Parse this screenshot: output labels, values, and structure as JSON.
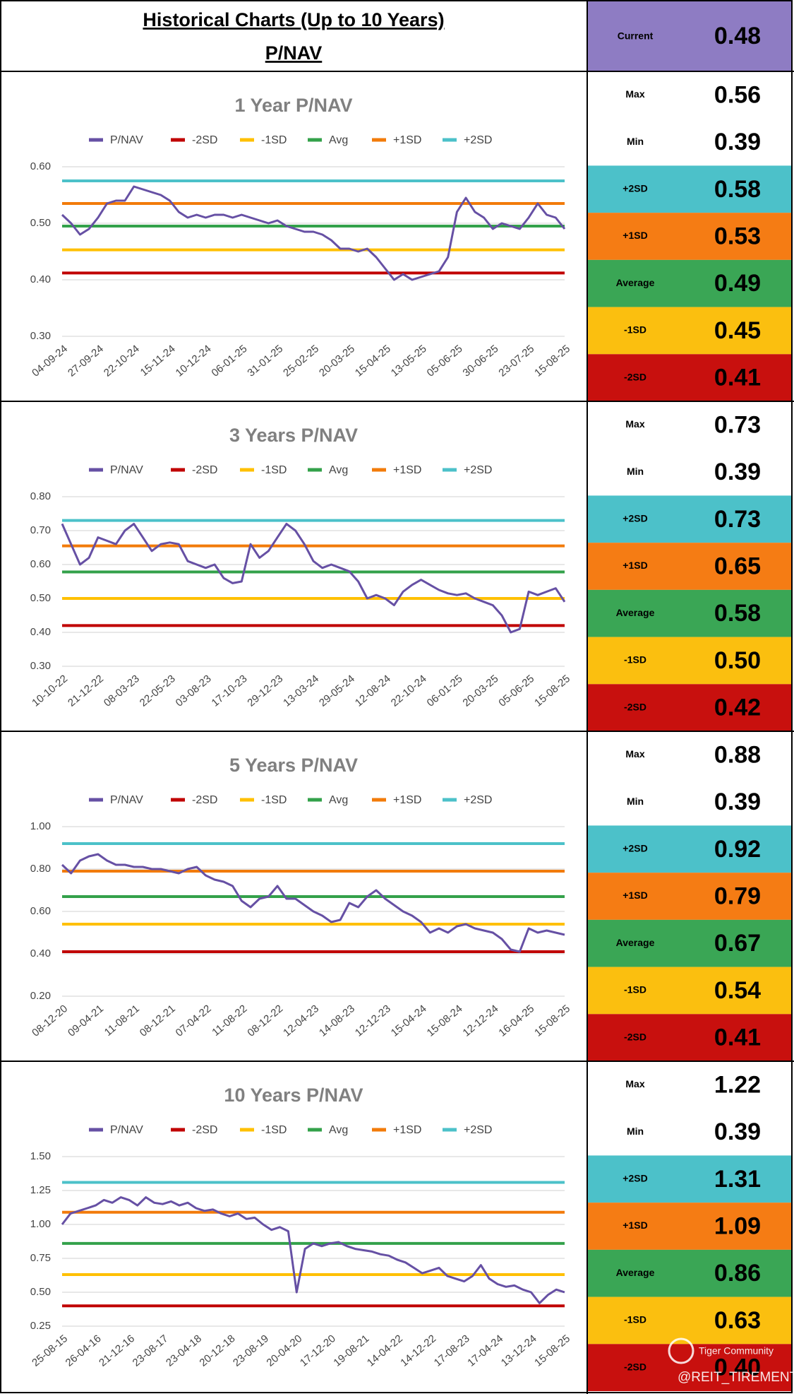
{
  "header": {
    "title": "Historical Charts (Up to 10 Years)",
    "subtitle": "P/NAV",
    "current_label": "Current",
    "current_value": "0.48",
    "current_color": "#8e7cc3"
  },
  "chart_data": [
    {
      "type": "line",
      "title": "1 Year P/NAV",
      "categories": [
        "04-09-24",
        null,
        null,
        null,
        "27-09-24",
        null,
        null,
        null,
        "22-10-24",
        null,
        null,
        null,
        "15-11-24",
        null,
        null,
        null,
        "10-12-24",
        null,
        null,
        null,
        "06-01-25",
        null,
        null,
        null,
        "31-01-25",
        null,
        null,
        null,
        "25-02-25",
        null,
        null,
        null,
        "20-03-25",
        null,
        null,
        null,
        "15-04-25",
        null,
        null,
        null,
        "13-05-25",
        null,
        null,
        null,
        "05-06-25",
        null,
        null,
        null,
        "30-06-25",
        null,
        null,
        null,
        "23-07-25",
        null,
        null,
        null,
        "15-08-25"
      ],
      "series": [
        {
          "name": "P/NAV",
          "color": "#6650a4",
          "values": [
            0.515,
            0.5,
            0.48,
            0.49,
            0.51,
            0.535,
            0.54,
            0.54,
            0.565,
            0.56,
            0.555,
            0.55,
            0.54,
            0.52,
            0.51,
            0.515,
            0.51,
            0.515,
            0.515,
            0.51,
            0.515,
            0.51,
            0.505,
            0.5,
            0.505,
            0.495,
            0.49,
            0.485,
            0.485,
            0.48,
            0.47,
            0.455,
            0.455,
            0.45,
            0.455,
            0.44,
            0.42,
            0.4,
            0.41,
            0.4,
            0.405,
            0.41,
            0.415,
            0.44,
            0.52,
            0.545,
            0.52,
            0.51,
            0.49,
            0.5,
            0.495,
            0.49,
            0.51,
            0.535,
            0.515,
            0.51,
            0.49
          ]
        }
      ],
      "lines": [
        {
          "name": "-2SD",
          "color": "#c00000",
          "value": 0.412
        },
        {
          "name": "-1SD",
          "color": "#ffc000",
          "value": 0.453
        },
        {
          "name": "Avg",
          "color": "#33a14a",
          "value": 0.495
        },
        {
          "name": "+1SD",
          "color": "#f27b0a",
          "value": 0.535
        },
        {
          "name": "+2SD",
          "color": "#4cc1c9",
          "value": 0.575
        }
      ],
      "ylim": [
        0.3,
        0.6
      ],
      "yticks": [
        {
          "value": 0.3,
          "label": "0.30"
        },
        {
          "value": 0.4,
          "label": "0.40"
        },
        {
          "value": 0.5,
          "label": "0.50"
        },
        {
          "value": 0.6,
          "label": "0.60"
        }
      ],
      "grid": true
    },
    {
      "type": "line",
      "title": "3 Years P/NAV",
      "categories": [
        "10-10-22",
        null,
        null,
        null,
        "21-12-22",
        null,
        null,
        null,
        "08-03-23",
        null,
        null,
        null,
        "22-05-23",
        null,
        null,
        null,
        "03-08-23",
        null,
        null,
        null,
        "17-10-23",
        null,
        null,
        null,
        "29-12-23",
        null,
        null,
        null,
        "13-03-24",
        null,
        null,
        null,
        "29-05-24",
        null,
        null,
        null,
        "12-08-24",
        null,
        null,
        null,
        "22-10-24",
        null,
        null,
        null,
        "06-01-25",
        null,
        null,
        null,
        "20-03-25",
        null,
        null,
        null,
        "05-06-25",
        null,
        null,
        null,
        "15-08-25"
      ],
      "series": [
        {
          "name": "P/NAV",
          "color": "#6650a4",
          "values": [
            0.72,
            0.66,
            0.6,
            0.62,
            0.68,
            0.67,
            0.66,
            0.7,
            0.72,
            0.68,
            0.64,
            0.66,
            0.665,
            0.66,
            0.61,
            0.6,
            0.59,
            0.6,
            0.56,
            0.545,
            0.55,
            0.66,
            0.62,
            0.64,
            0.68,
            0.72,
            0.7,
            0.66,
            0.61,
            0.59,
            0.6,
            0.59,
            0.58,
            0.55,
            0.5,
            0.51,
            0.5,
            0.48,
            0.52,
            0.54,
            0.555,
            0.54,
            0.525,
            0.515,
            0.51,
            0.515,
            0.5,
            0.49,
            0.48,
            0.45,
            0.4,
            0.41,
            0.52,
            0.51,
            0.52,
            0.53,
            0.49
          ]
        }
      ],
      "lines": [
        {
          "name": "-2SD",
          "color": "#c00000",
          "value": 0.42
        },
        {
          "name": "-1SD",
          "color": "#ffc000",
          "value": 0.5
        },
        {
          "name": "Avg",
          "color": "#33a14a",
          "value": 0.578
        },
        {
          "name": "+1SD",
          "color": "#f27b0a",
          "value": 0.655
        },
        {
          "name": "+2SD",
          "color": "#4cc1c9",
          "value": 0.73
        }
      ],
      "ylim": [
        0.3,
        0.8
      ],
      "yticks": [
        {
          "value": 0.3,
          "label": "0.30"
        },
        {
          "value": 0.4,
          "label": "0.40"
        },
        {
          "value": 0.5,
          "label": "0.50"
        },
        {
          "value": 0.6,
          "label": "0.60"
        },
        {
          "value": 0.7,
          "label": "0.70"
        },
        {
          "value": 0.8,
          "label": "0.80"
        }
      ],
      "grid": true
    },
    {
      "type": "line",
      "title": "5 Years P/NAV",
      "categories": [
        "08-12-20",
        null,
        null,
        null,
        "09-04-21",
        null,
        null,
        null,
        "11-08-21",
        null,
        null,
        null,
        "08-12-21",
        null,
        null,
        null,
        "07-04-22",
        null,
        null,
        null,
        "11-08-22",
        null,
        null,
        null,
        "08-12-22",
        null,
        null,
        null,
        "12-04-23",
        null,
        null,
        null,
        "14-08-23",
        null,
        null,
        null,
        "12-12-23",
        null,
        null,
        null,
        "15-04-24",
        null,
        null,
        null,
        "15-08-24",
        null,
        null,
        null,
        "12-12-24",
        null,
        null,
        null,
        "16-04-25",
        null,
        null,
        null,
        "15-08-25"
      ],
      "series": [
        {
          "name": "P/NAV",
          "color": "#6650a4",
          "values": [
            0.82,
            0.78,
            0.84,
            0.86,
            0.87,
            0.84,
            0.82,
            0.82,
            0.81,
            0.81,
            0.8,
            0.8,
            0.79,
            0.78,
            0.8,
            0.81,
            0.77,
            0.75,
            0.74,
            0.72,
            0.65,
            0.62,
            0.66,
            0.67,
            0.72,
            0.66,
            0.66,
            0.63,
            0.6,
            0.58,
            0.55,
            0.56,
            0.64,
            0.62,
            0.67,
            0.7,
            0.66,
            0.63,
            0.6,
            0.58,
            0.55,
            0.5,
            0.52,
            0.5,
            0.53,
            0.54,
            0.52,
            0.51,
            0.5,
            0.47,
            0.42,
            0.41,
            0.52,
            0.5,
            0.51,
            0.5,
            0.49
          ]
        }
      ],
      "lines": [
        {
          "name": "-2SD",
          "color": "#c00000",
          "value": 0.41
        },
        {
          "name": "-1SD",
          "color": "#ffc000",
          "value": 0.54
        },
        {
          "name": "Avg",
          "color": "#33a14a",
          "value": 0.67
        },
        {
          "name": "+1SD",
          "color": "#f27b0a",
          "value": 0.79
        },
        {
          "name": "+2SD",
          "color": "#4cc1c9",
          "value": 0.92
        }
      ],
      "ylim": [
        0.2,
        1.0
      ],
      "yticks": [
        {
          "value": 0.2,
          "label": "0.20"
        },
        {
          "value": 0.4,
          "label": "0.40"
        },
        {
          "value": 0.6,
          "label": "0.60"
        },
        {
          "value": 0.8,
          "label": "0.80"
        },
        {
          "value": 1.0,
          "label": "1.00"
        }
      ],
      "grid": true
    },
    {
      "type": "line",
      "title": "10 Years P/NAV",
      "categories": [
        "25-08-15",
        null,
        null,
        null,
        "26-04-16",
        null,
        null,
        null,
        "21-12-16",
        null,
        null,
        null,
        "23-08-17",
        null,
        null,
        null,
        "23-04-18",
        null,
        null,
        null,
        "20-12-18",
        null,
        null,
        null,
        "23-08-19",
        null,
        null,
        null,
        "20-04-20",
        null,
        null,
        null,
        "17-12-20",
        null,
        null,
        null,
        "19-08-21",
        null,
        null,
        null,
        "14-04-22",
        null,
        null,
        null,
        "14-12-22",
        null,
        null,
        null,
        "17-08-23",
        null,
        null,
        null,
        "17-04-24",
        null,
        null,
        null,
        "13-12-24",
        null,
        null,
        null,
        "15-08-25"
      ],
      "series": [
        {
          "name": "P/NAV",
          "color": "#6650a4",
          "values": [
            1.0,
            1.08,
            1.1,
            1.12,
            1.14,
            1.18,
            1.16,
            1.2,
            1.18,
            1.14,
            1.2,
            1.16,
            1.15,
            1.17,
            1.14,
            1.16,
            1.12,
            1.1,
            1.11,
            1.08,
            1.06,
            1.08,
            1.04,
            1.05,
            1.0,
            0.96,
            0.98,
            0.95,
            0.5,
            0.82,
            0.86,
            0.84,
            0.86,
            0.87,
            0.84,
            0.82,
            0.81,
            0.8,
            0.78,
            0.77,
            0.74,
            0.72,
            0.68,
            0.64,
            0.66,
            0.68,
            0.62,
            0.6,
            0.58,
            0.62,
            0.7,
            0.6,
            0.56,
            0.54,
            0.55,
            0.52,
            0.5,
            0.42,
            0.48,
            0.52,
            0.5
          ]
        }
      ],
      "lines": [
        {
          "name": "-2SD",
          "color": "#c00000",
          "value": 0.4
        },
        {
          "name": "-1SD",
          "color": "#ffc000",
          "value": 0.63
        },
        {
          "name": "Avg",
          "color": "#33a14a",
          "value": 0.86
        },
        {
          "name": "+1SD",
          "color": "#f27b0a",
          "value": 1.09
        },
        {
          "name": "+2SD",
          "color": "#4cc1c9",
          "value": 1.31
        }
      ],
      "ylim": [
        0.25,
        1.5
      ],
      "yticks": [
        0.25,
        {
          "value": 0.5,
          "label": "0.50"
        },
        0.75,
        {
          "value": 1.0,
          "label": "1.00"
        },
        1.25,
        {
          "value": 1.5,
          "label": "1.50"
        }
      ],
      "grid": true
    }
  ],
  "stats": [
    {
      "rows": [
        {
          "label": "Max",
          "value": "0.56",
          "color": "#ffffff"
        },
        {
          "label": "Min",
          "value": "0.39",
          "color": "#ffffff"
        },
        {
          "label": "+2SD",
          "value": "0.58",
          "color": "#4cc1c9"
        },
        {
          "label": "+1SD",
          "value": "0.53",
          "color": "#f57c14"
        },
        {
          "label": "Average",
          "value": "0.49",
          "color": "#3aa655"
        },
        {
          "label": "-1SD",
          "value": "0.45",
          "color": "#fbbf0f"
        },
        {
          "label": "-2SD",
          "value": "0.41",
          "color": "#c8100e"
        }
      ]
    },
    {
      "rows": [
        {
          "label": "Max",
          "value": "0.73",
          "color": "#ffffff"
        },
        {
          "label": "Min",
          "value": "0.39",
          "color": "#ffffff"
        },
        {
          "label": "+2SD",
          "value": "0.73",
          "color": "#4cc1c9"
        },
        {
          "label": "+1SD",
          "value": "0.65",
          "color": "#f57c14"
        },
        {
          "label": "Average",
          "value": "0.58",
          "color": "#3aa655"
        },
        {
          "label": "-1SD",
          "value": "0.50",
          "color": "#fbbf0f"
        },
        {
          "label": "-2SD",
          "value": "0.42",
          "color": "#c8100e"
        }
      ]
    },
    {
      "rows": [
        {
          "label": "Max",
          "value": "0.88",
          "color": "#ffffff"
        },
        {
          "label": "Min",
          "value": "0.39",
          "color": "#ffffff"
        },
        {
          "label": "+2SD",
          "value": "0.92",
          "color": "#4cc1c9"
        },
        {
          "label": "+1SD",
          "value": "0.79",
          "color": "#f57c14"
        },
        {
          "label": "Average",
          "value": "0.67",
          "color": "#3aa655"
        },
        {
          "label": "-1SD",
          "value": "0.54",
          "color": "#fbbf0f"
        },
        {
          "label": "-2SD",
          "value": "0.41",
          "color": "#c8100e"
        }
      ]
    },
    {
      "rows": [
        {
          "label": "Max",
          "value": "1.22",
          "color": "#ffffff"
        },
        {
          "label": "Min",
          "value": "0.39",
          "color": "#ffffff"
        },
        {
          "label": "+2SD",
          "value": "1.31",
          "color": "#4cc1c9"
        },
        {
          "label": "+1SD",
          "value": "1.09",
          "color": "#f57c14"
        },
        {
          "label": "Average",
          "value": "0.86",
          "color": "#3aa655"
        },
        {
          "label": "-1SD",
          "value": "0.63",
          "color": "#fbbf0f"
        },
        {
          "label": "-2SD",
          "value": "0.40",
          "color": "#c8100e"
        }
      ]
    }
  ],
  "watermark": {
    "brand": "Tiger Community",
    "handle": "@REIT_TIREMENT"
  }
}
